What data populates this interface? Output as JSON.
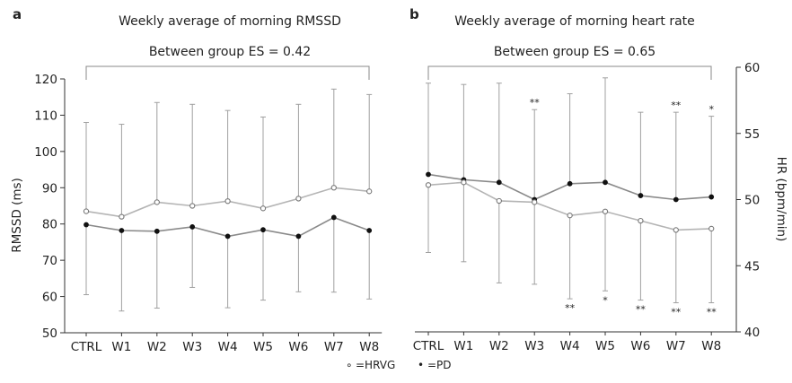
{
  "chart_data": [
    {
      "panel_label": "a",
      "type": "line",
      "title": "Weekly average of morning RMSSD",
      "annotation": "Between group ES = 0.42",
      "xlabel": "",
      "ylabel": "RMSSD (ms)",
      "categories": [
        "CTRL",
        "W1",
        "W2",
        "W3",
        "W4",
        "W5",
        "W6",
        "W7",
        "W8"
      ],
      "ylim": [
        50,
        120
      ],
      "yticks": [
        "50",
        "60",
        "70",
        "80",
        "90",
        "100",
        "110",
        "120"
      ],
      "series": [
        {
          "name": "HRVG",
          "marker": "open-circle",
          "values": [
            83.5,
            82,
            86,
            85,
            86.3,
            84.3,
            87,
            90,
            89
          ],
          "error_upper": [
            108,
            107.5,
            113.5,
            113,
            111.3,
            109.5,
            113,
            117.2,
            115.7
          ]
        },
        {
          "name": "PD",
          "marker": "filled-circle",
          "values": [
            79.8,
            78.2,
            78,
            79.2,
            76.6,
            78.4,
            76.6,
            81.8,
            78.2
          ],
          "error_lower": [
            60.5,
            56,
            56.8,
            62.5,
            56.9,
            59,
            61.3,
            61.2,
            59.3
          ]
        }
      ]
    },
    {
      "panel_label": "b",
      "type": "line",
      "title": "Weekly average of morning heart rate",
      "annotation": "Between group ES = 0.65",
      "xlabel": "",
      "ylabel": "HR (bpm/min)",
      "categories": [
        "CTRL",
        "W1",
        "W2",
        "W3",
        "W4",
        "W5",
        "W6",
        "W7",
        "W8"
      ],
      "ylim": [
        40,
        60
      ],
      "yticks": [
        "40",
        "45",
        "50",
        "55",
        "60"
      ],
      "y_axis_side": "right",
      "series": [
        {
          "name": "PD",
          "marker": "filled-circle",
          "values": [
            51.9,
            51.5,
            51.3,
            50,
            51.2,
            51.3,
            50.3,
            50,
            50.2
          ],
          "error_upper": [
            58.8,
            58.7,
            58.8,
            56.8,
            58,
            59.2,
            56.6,
            56.6,
            56.3
          ]
        },
        {
          "name": "HRVG",
          "marker": "open-circle",
          "values": [
            51.1,
            51.3,
            49.9,
            49.8,
            48.8,
            49.1,
            48.4,
            47.7,
            47.8
          ],
          "error_lower": [
            46,
            45.3,
            43.7,
            43.6,
            42.5,
            43.1,
            42.4,
            42.2,
            42.2
          ]
        }
      ],
      "significance_above": [
        "",
        "",
        "",
        "**",
        "",
        "",
        "",
        "**",
        "*"
      ],
      "significance_below": [
        "",
        "",
        "",
        "",
        "**",
        "*",
        "**",
        "**",
        "**"
      ]
    }
  ],
  "legend": {
    "items": [
      {
        "symbol": "∘",
        "label": "=HRVG"
      },
      {
        "symbol": "•",
        "label": "=PD"
      }
    ]
  },
  "colors": {
    "hrvg_line": "#b4b4b4",
    "pd_line": "#8a8a8a",
    "error_bar": "#a0a0a0",
    "axis": "#333333"
  }
}
